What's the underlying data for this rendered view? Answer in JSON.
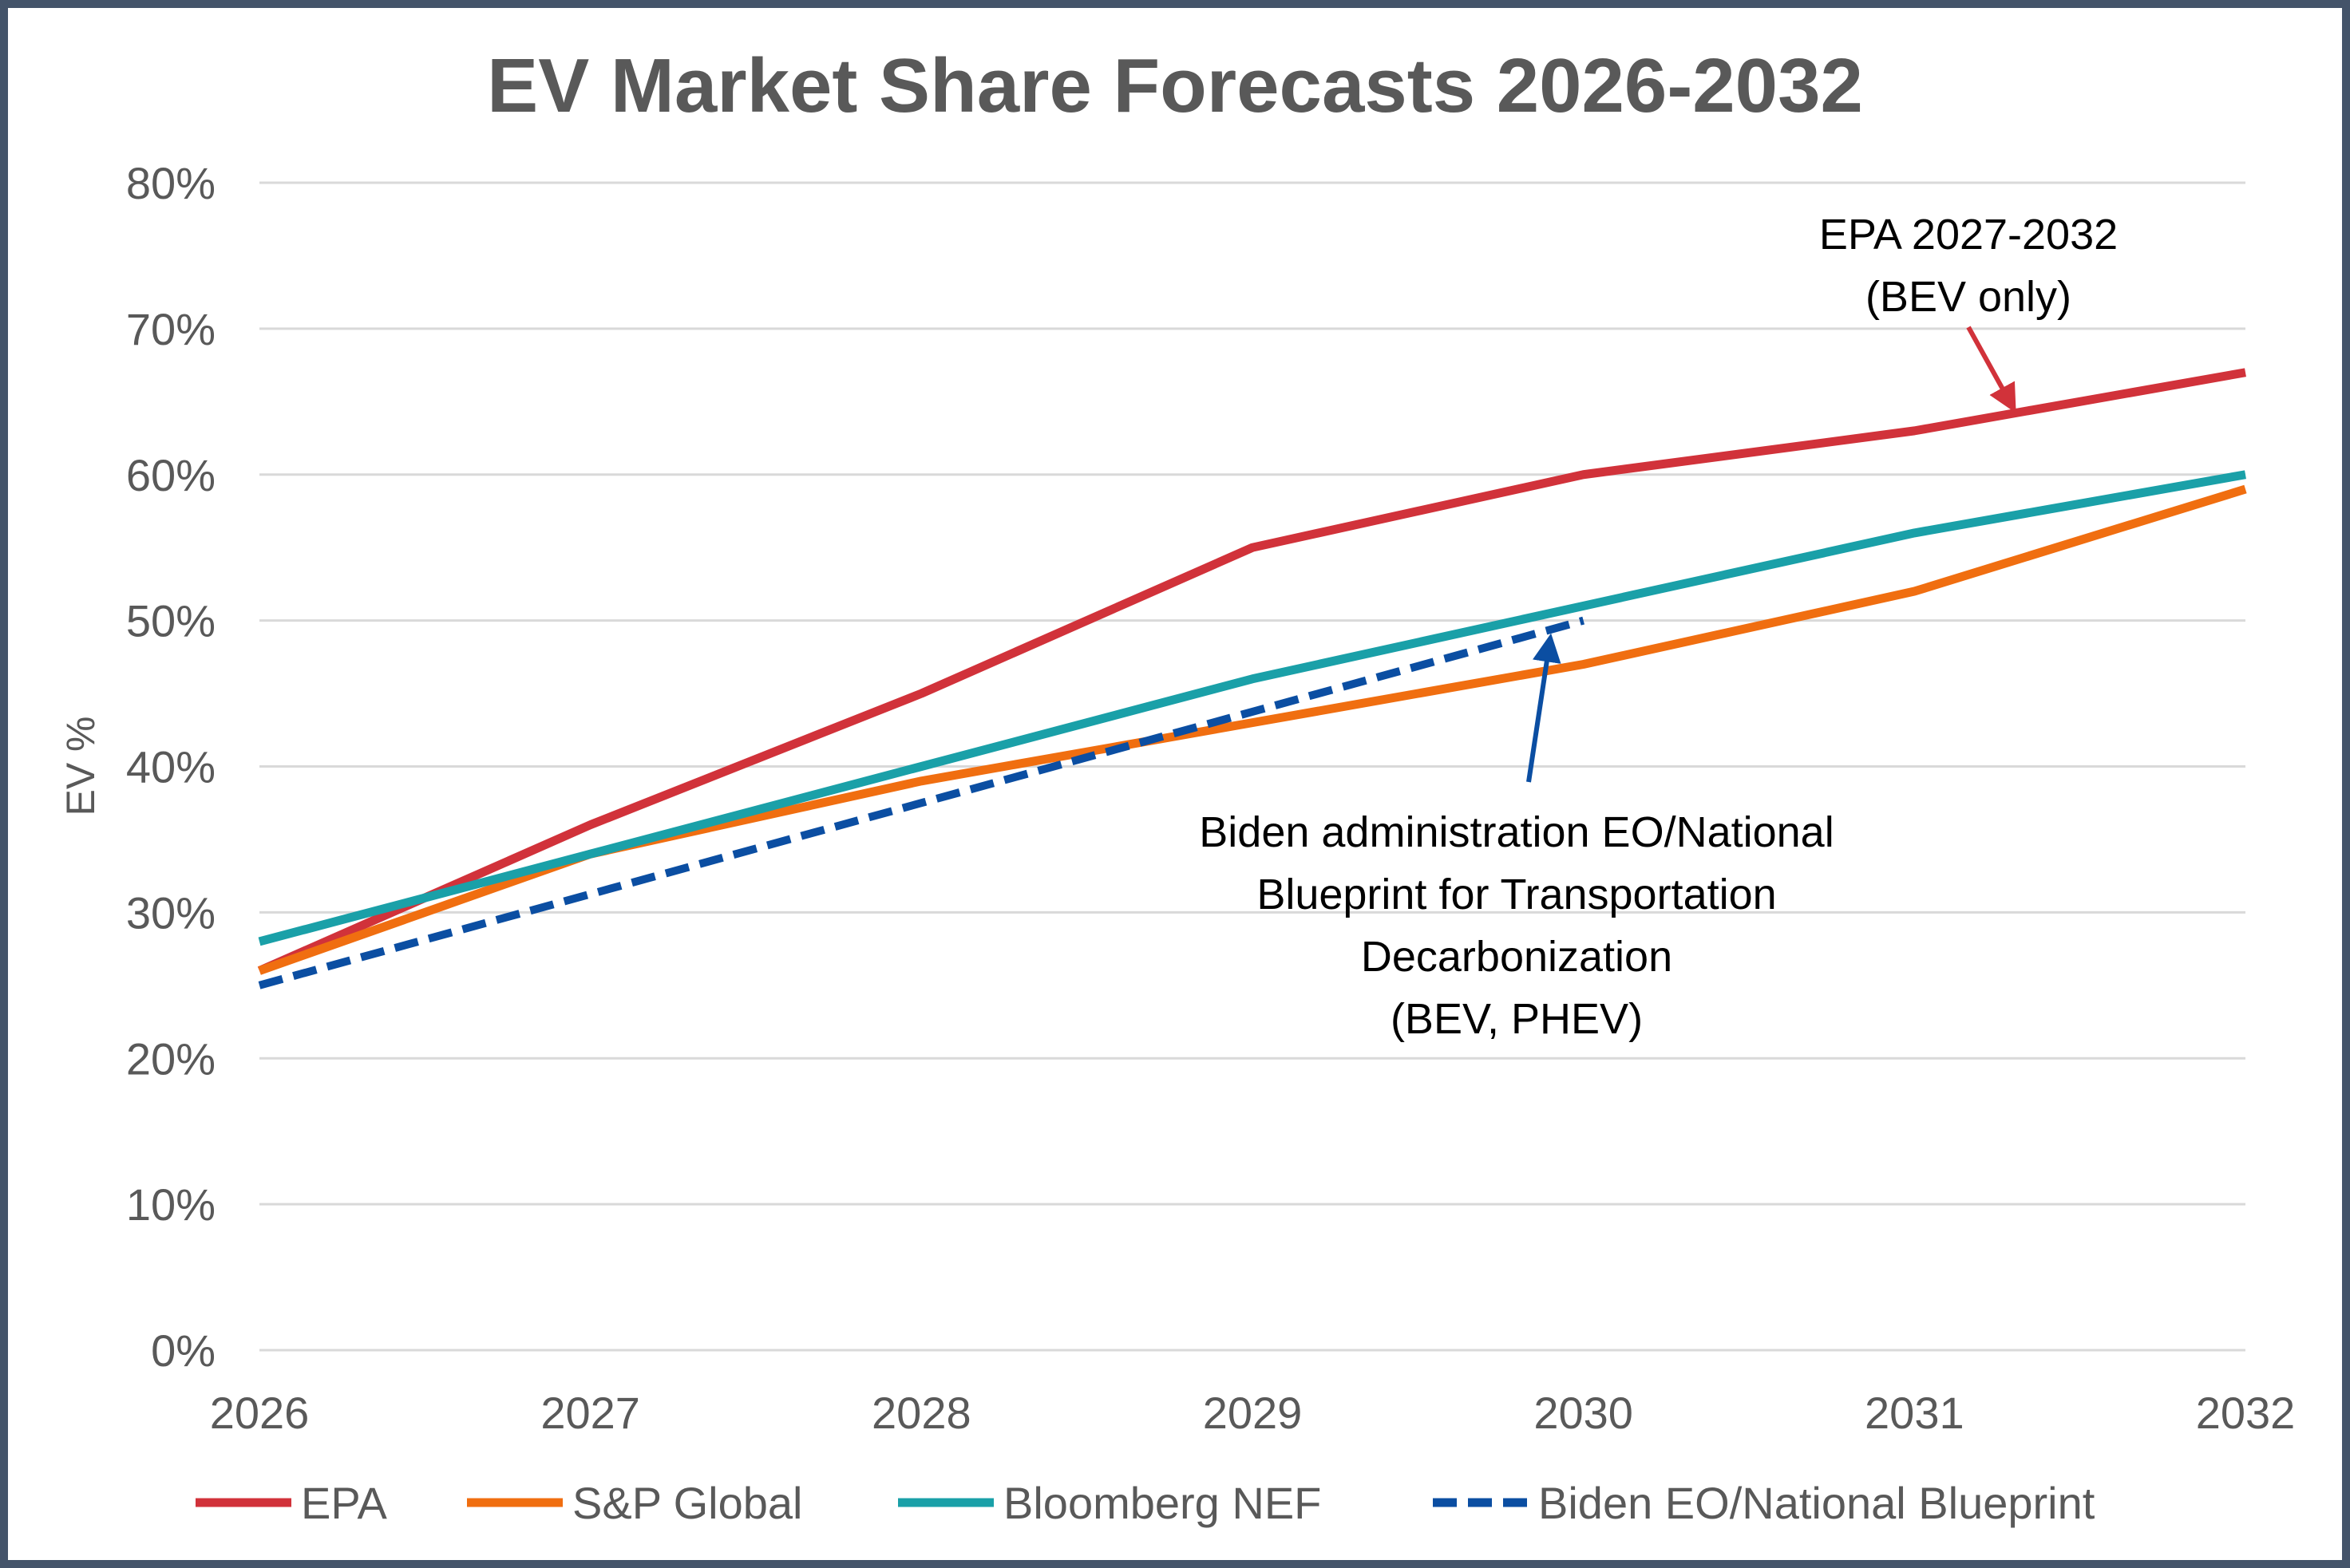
{
  "chart_data": {
    "type": "line",
    "title": "EV Market Share Forecasts 2026-2032",
    "xlabel": "",
    "ylabel": "EV %",
    "x": [
      2026,
      2027,
      2028,
      2029,
      2030,
      2031,
      2032
    ],
    "x_tick_labels": [
      "2026",
      "2027",
      "2028",
      "2029",
      "2030",
      "2031",
      "2032"
    ],
    "ylim": [
      0,
      80
    ],
    "y_ticks": [
      0,
      10,
      20,
      30,
      40,
      50,
      60,
      70,
      80
    ],
    "y_tick_labels": [
      "0%",
      "10%",
      "20%",
      "30%",
      "40%",
      "50%",
      "60%",
      "70%",
      "80%"
    ],
    "grid": "horizontal",
    "legend_placement": "bottom",
    "series": [
      {
        "name": "EPA",
        "color": "#d1323a",
        "dash": false,
        "values": [
          26,
          36,
          45,
          55,
          60,
          63,
          67
        ]
      },
      {
        "name": "S&P Global",
        "color": "#f06e10",
        "dash": false,
        "values": [
          26,
          34,
          39,
          43,
          47,
          52,
          59
        ]
      },
      {
        "name": "Bloomberg NEF",
        "color": "#1aa0a8",
        "dash": false,
        "values": [
          28,
          34,
          40,
          46,
          51,
          56,
          60
        ]
      },
      {
        "name": "Biden EO/National Blueprint",
        "color": "#0b4ea2",
        "dash": true,
        "values": [
          25,
          31.25,
          37.5,
          43.75,
          50,
          null,
          null
        ]
      }
    ],
    "annotations": [
      {
        "lines": [
          "EPA 2027-2032",
          "(BEV only)"
        ],
        "color": "#d1323a",
        "points_to": {
          "x": 2031.3,
          "y": 64.5
        }
      },
      {
        "lines": [
          "Biden administration EO/National",
          "Blueprint for Transportation",
          "Decarbonization",
          "(BEV, PHEV)"
        ],
        "color": "#0b4ea2",
        "points_to": {
          "x": 2029.9,
          "y": 48.8
        }
      }
    ]
  }
}
